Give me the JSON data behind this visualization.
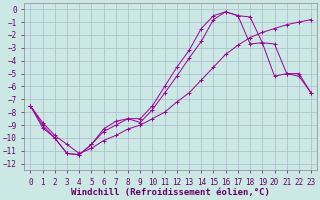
{
  "xlabel": "Windchill (Refroidissement éolien,°C)",
  "background_color": "#cce8e4",
  "grid_color": "#aabbcc",
  "line_color": "#990099",
  "xlim": [
    -0.5,
    23.5
  ],
  "ylim": [
    -12.5,
    0.5
  ],
  "xticks": [
    0,
    1,
    2,
    3,
    4,
    5,
    6,
    7,
    8,
    9,
    10,
    11,
    12,
    13,
    14,
    15,
    16,
    17,
    18,
    19,
    20,
    21,
    22,
    23
  ],
  "yticks": [
    0,
    -1,
    -2,
    -3,
    -4,
    -5,
    -6,
    -7,
    -8,
    -9,
    -10,
    -11,
    -12
  ],
  "series": [
    {
      "x": [
        0,
        1,
        2,
        3,
        4,
        5,
        6,
        7,
        8,
        9,
        10,
        11,
        12,
        13,
        14,
        15,
        16,
        17,
        18,
        19,
        20,
        21,
        22,
        23
      ],
      "y": [
        -7.5,
        -8.8,
        -9.8,
        -10.5,
        -11.2,
        -10.8,
        -10.2,
        -9.8,
        -9.3,
        -9.0,
        -8.5,
        -8.0,
        -7.2,
        -6.5,
        -5.5,
        -4.5,
        -3.5,
        -2.8,
        -2.2,
        -1.8,
        -1.5,
        -1.2,
        -1.0,
        -0.8
      ]
    },
    {
      "x": [
        0,
        1,
        2,
        3,
        4,
        5,
        6,
        7,
        8,
        9,
        10,
        11,
        12,
        13,
        14,
        15,
        16,
        17,
        18,
        19,
        20,
        21,
        22,
        23
      ],
      "y": [
        -7.5,
        -9.0,
        -10.0,
        -11.2,
        -11.3,
        -10.5,
        -9.5,
        -9.0,
        -8.5,
        -8.8,
        -7.8,
        -6.5,
        -5.2,
        -3.8,
        -2.5,
        -0.8,
        -0.2,
        -0.5,
        -0.6,
        -2.6,
        -2.7,
        -5.0,
        -5.2,
        -6.5
      ]
    },
    {
      "x": [
        0,
        1,
        2,
        3,
        4,
        5,
        6,
        7,
        8,
        9,
        10,
        11,
        12,
        13,
        14,
        15,
        16,
        17,
        18,
        19,
        20,
        21,
        22,
        23
      ],
      "y": [
        -7.5,
        -9.2,
        -10.0,
        -11.2,
        -11.3,
        -10.5,
        -9.3,
        -8.7,
        -8.5,
        -8.5,
        -7.5,
        -6.0,
        -4.5,
        -3.2,
        -1.5,
        -0.5,
        -0.2,
        -0.5,
        -2.7,
        -2.6,
        -5.2,
        -5.0,
        -5.0,
        -6.5
      ]
    }
  ],
  "font_family": "monospace",
  "xlabel_fontsize": 6.5,
  "tick_fontsize": 5.5,
  "xlabel_color": "#660066",
  "tick_color": "#660066"
}
